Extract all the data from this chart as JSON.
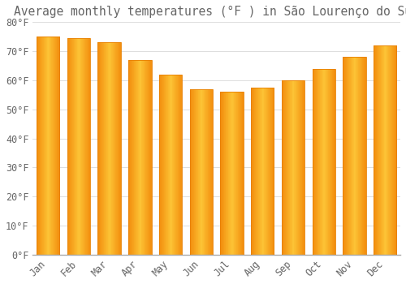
{
  "title": "Average monthly temperatures (°F ) in São Lourenço do Sul",
  "months": [
    "Jan",
    "Feb",
    "Mar",
    "Apr",
    "May",
    "Jun",
    "Jul",
    "Aug",
    "Sep",
    "Oct",
    "Nov",
    "Dec"
  ],
  "values": [
    75,
    74.5,
    73,
    67,
    62,
    57,
    56,
    57.5,
    60,
    64,
    68,
    72
  ],
  "bar_color_main": "#FFA500",
  "bar_color_light": "#FFD060",
  "bar_color_dark": "#E88000",
  "background_color": "#ffffff",
  "grid_color": "#dddddd",
  "text_color": "#666666",
  "ylim": [
    0,
    80
  ],
  "yticks": [
    0,
    10,
    20,
    30,
    40,
    50,
    60,
    70,
    80
  ],
  "ytick_labels": [
    "0°F",
    "10°F",
    "20°F",
    "30°F",
    "40°F",
    "50°F",
    "60°F",
    "70°F",
    "80°F"
  ],
  "title_fontsize": 10.5,
  "tick_fontsize": 8.5
}
